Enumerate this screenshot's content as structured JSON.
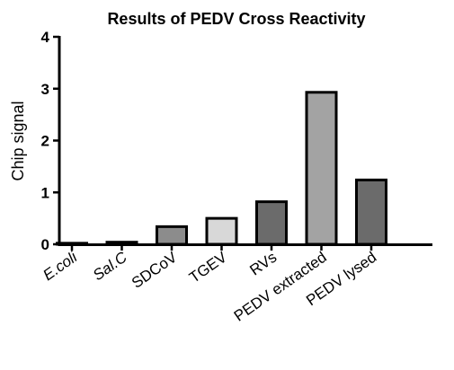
{
  "chart_data": {
    "type": "bar",
    "title": "Results of PEDV Cross Reactivity",
    "xlabel": "",
    "ylabel": "Chip signal",
    "ylim": [
      0,
      4
    ],
    "yticks": [
      0,
      1,
      2,
      3,
      4
    ],
    "grid": false,
    "categories": [
      "E.coli",
      "Sal.C",
      "SDCoV",
      "TGEV",
      "RVs",
      "PEDV extracted",
      "PEDV lysed"
    ],
    "italic_categories": [
      "E.coli",
      "Sal.C"
    ],
    "values": [
      0.02,
      0.04,
      0.34,
      0.5,
      0.82,
      2.93,
      1.24
    ],
    "bar_colors": [
      "#6b6b6b",
      "#6b6b6b",
      "#8c8c8c",
      "#d8d8d8",
      "#6b6b6b",
      "#a3a3a3",
      "#6b6b6b"
    ]
  }
}
